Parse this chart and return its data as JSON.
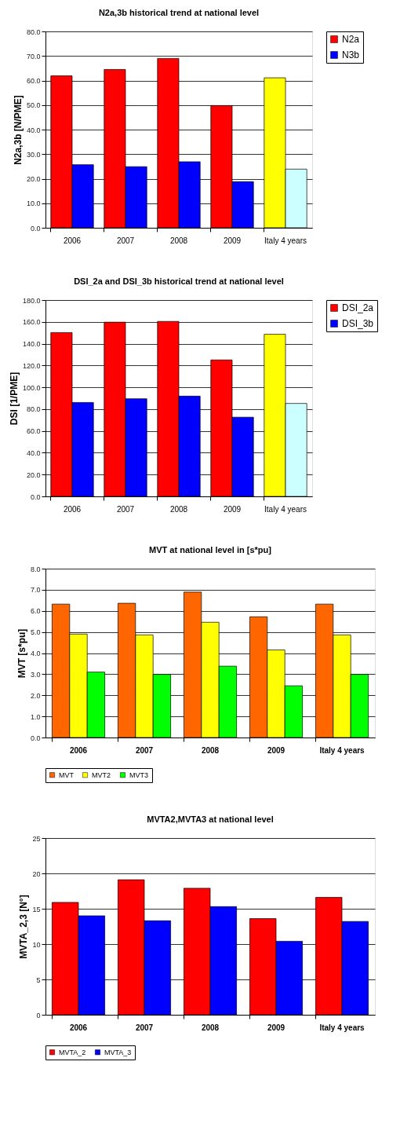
{
  "chart_data": [
    {
      "type": "bar",
      "title": "N2a,3b historical trend at national level",
      "ylabel": "N2a,3b  [N/PME]",
      "categories": [
        "2006",
        "2007",
        "2008",
        "2009",
        "Italy 4 years"
      ],
      "series": [
        {
          "name": "N2a",
          "color": "#ff0000",
          "colors": [
            "#ff0000",
            "#ff0000",
            "#ff0000",
            "#ff0000",
            "#ffff00"
          ],
          "values": [
            61.9,
            64.5,
            69.0,
            49.8,
            61.1
          ]
        },
        {
          "name": "N3b",
          "color": "#0000ff",
          "colors": [
            "#0000ff",
            "#0000ff",
            "#0000ff",
            "#0000ff",
            "#ccffff"
          ],
          "values": [
            25.7,
            24.9,
            26.9,
            18.8,
            23.9
          ]
        }
      ],
      "ylim": [
        0,
        80
      ],
      "yticks": [
        {
          "value": 0,
          "label": "0.0"
        },
        {
          "value": 10,
          "label": "10.0"
        },
        {
          "value": 20,
          "label": "20.0"
        },
        {
          "value": 30,
          "label": "30.0"
        },
        {
          "value": 40,
          "label": "40.0"
        },
        {
          "value": 50,
          "label": "50.0"
        },
        {
          "value": 60,
          "label": "60.0"
        },
        {
          "value": 70,
          "label": "70.0"
        },
        {
          "value": 80,
          "label": "80.0"
        }
      ],
      "grid": "y",
      "legend": "right"
    },
    {
      "type": "bar",
      "title": "DSI_2a and DSI_3b historical trend at national level",
      "ylabel": "DSI  [1/PME]",
      "categories": [
        "2006",
        "2007",
        "2008",
        "2009",
        "Italy 4 years"
      ],
      "series": [
        {
          "name": "DSI_2a",
          "color": "#ff0000",
          "colors": [
            "#ff0000",
            "#ff0000",
            "#ff0000",
            "#ff0000",
            "#ffff00"
          ],
          "values": [
            150.2,
            159.7,
            160.4,
            125.1,
            148.6
          ]
        },
        {
          "name": "DSI_3b",
          "color": "#0000ff",
          "colors": [
            "#0000ff",
            "#0000ff",
            "#0000ff",
            "#0000ff",
            "#ccffff"
          ],
          "values": [
            86.1,
            89.5,
            91.9,
            72.6,
            85.2
          ]
        }
      ],
      "ylim": [
        0,
        180
      ],
      "yticks": [
        {
          "value": 0,
          "label": "0.0"
        },
        {
          "value": 20,
          "label": "20.0"
        },
        {
          "value": 40,
          "label": "40.0"
        },
        {
          "value": 60,
          "label": "60.0"
        },
        {
          "value": 80,
          "label": "80.0"
        },
        {
          "value": 100,
          "label": "100.0"
        },
        {
          "value": 120,
          "label": "120.0"
        },
        {
          "value": 140,
          "label": "140.0"
        },
        {
          "value": 160,
          "label": "160.0"
        },
        {
          "value": 180,
          "label": "180.0"
        }
      ],
      "grid": "y",
      "legend": "right"
    },
    {
      "type": "bar",
      "title": "MVT at national level in [s*pu]",
      "ylabel": "MVT  [s*pu]",
      "categories": [
        "2006",
        "2007",
        "2008",
        "2009",
        "Italy 4 years"
      ],
      "series": [
        {
          "name": "MVT",
          "color": "#ff6600",
          "values": [
            6.32,
            6.36,
            6.89,
            5.72,
            6.32
          ]
        },
        {
          "name": "MVT2",
          "color": "#ffff00",
          "values": [
            4.9,
            4.86,
            5.46,
            4.15,
            4.86
          ]
        },
        {
          "name": "MVT3",
          "color": "#00ff00",
          "values": [
            3.1,
            2.99,
            3.38,
            2.45,
            2.99
          ]
        }
      ],
      "ylim": [
        0,
        8
      ],
      "yticks": [
        {
          "value": 0,
          "label": "0.0"
        },
        {
          "value": 1,
          "label": "1.0"
        },
        {
          "value": 2,
          "label": "2.0"
        },
        {
          "value": 3,
          "label": "3.0"
        },
        {
          "value": 4,
          "label": "4.0"
        },
        {
          "value": 5,
          "label": "5.0"
        },
        {
          "value": 6,
          "label": "6.0"
        },
        {
          "value": 7,
          "label": "7.0"
        },
        {
          "value": 8,
          "label": "8.0"
        }
      ],
      "grid": "y",
      "legend": "bottom"
    },
    {
      "type": "bar",
      "title": "MVTA2,MVTA3 at national level",
      "ylabel": "MVTA_2,3  [N°]",
      "categories": [
        "2006",
        "2007",
        "2008",
        "2009",
        "Italy 4 years"
      ],
      "series": [
        {
          "name": "MVTA_2",
          "color": "#ff0000",
          "values": [
            15.9,
            19.1,
            17.9,
            13.6,
            16.6
          ]
        },
        {
          "name": "MVTA_3",
          "color": "#0000ff",
          "values": [
            14.0,
            13.3,
            15.3,
            10.4,
            13.2
          ]
        }
      ],
      "ylim": [
        0,
        25
      ],
      "yticks": [
        0,
        5,
        10,
        15,
        20,
        25
      ],
      "grid": "y",
      "legend": "bottom"
    }
  ]
}
